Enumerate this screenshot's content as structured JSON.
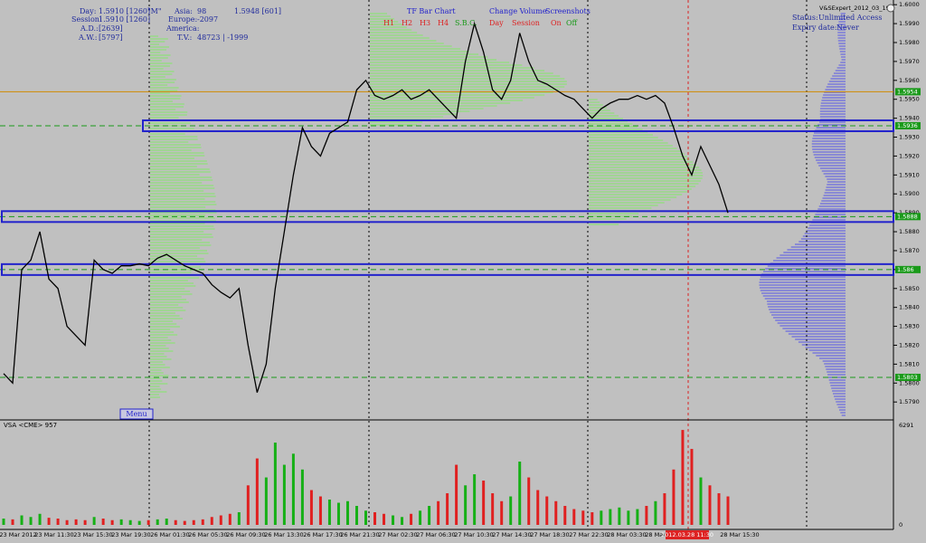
{
  "info_panel": {
    "day": {
      "label": "Day:",
      "value": "1.5910 [1260]",
      "mode": "\"M\""
    },
    "session": {
      "label": "Session:",
      "value": "1.5910 [1260]"
    },
    "ad": {
      "label": "A.D.:",
      "value": "[2639]"
    },
    "aw": {
      "label": "A.W.:",
      "value": "[5797]"
    },
    "asia": {
      "label": "Asia:",
      "value": "98",
      "extra": "1.5948 [601]"
    },
    "europe": {
      "label": "Europe:",
      "value": "-2097"
    },
    "america": {
      "label": "America:"
    },
    "tv": {
      "label": "T.V.:",
      "value": "48723 | -1999"
    }
  },
  "menu_bar": {
    "tf_bar_chart": "TF Bar Chart",
    "timeframes": [
      "H1",
      "H2",
      "H3",
      "H4"
    ],
    "sbc": "S.B.C.",
    "change_volume": "Change Volume",
    "day": "Day",
    "session": "Session",
    "screenshots": "Screenshots",
    "on": "On",
    "off": "Off"
  },
  "expert_panel": {
    "name": "V&SExpert_2012_03_19",
    "status_label": "Status:",
    "status": "Unlimited Access",
    "expiry_label": "Expiry date:",
    "expiry": "Never"
  },
  "menu_button": "Menu",
  "price_panel": {
    "ylim": [
      1.5781,
      1.6002
    ],
    "yticks": [
      {
        "value": 1.6,
        "label": "1.6000"
      },
      {
        "value": 1.599,
        "label": "1.5990"
      },
      {
        "value": 1.598,
        "label": "1.5980"
      },
      {
        "value": 1.597,
        "label": "1.5970"
      },
      {
        "value": 1.596,
        "label": "1.5960"
      },
      {
        "value": 1.595,
        "label": "1.5950"
      },
      {
        "value": 1.594,
        "label": "1.5940"
      },
      {
        "value": 1.593,
        "label": "1.5930"
      },
      {
        "value": 1.592,
        "label": "1.5920"
      },
      {
        "value": 1.591,
        "label": "1.5910"
      },
      {
        "value": 1.59,
        "label": "1.5900"
      },
      {
        "value": 1.589,
        "label": "1.5890"
      },
      {
        "value": 1.588,
        "label": "1.5880"
      },
      {
        "value": 1.587,
        "label": "1.5870"
      },
      {
        "value": 1.586,
        "label": "1.5860"
      },
      {
        "value": 1.585,
        "label": "1.5850"
      },
      {
        "value": 1.584,
        "label": "1.5840"
      },
      {
        "value": 1.583,
        "label": "1.5830"
      },
      {
        "value": 1.582,
        "label": "1.5820"
      },
      {
        "value": 1.581,
        "label": "1.5810"
      },
      {
        "value": 1.58,
        "label": "1.5800"
      },
      {
        "value": 1.579,
        "label": "1.5790"
      }
    ],
    "levels": [
      1.5954,
      1.5936,
      1.5888,
      1.586,
      1.5803
    ],
    "close": [
      1.5805,
      1.58,
      1.586,
      1.5865,
      1.588,
      1.5855,
      1.585,
      1.583,
      1.5825,
      1.582,
      1.5865,
      1.586,
      1.5858,
      1.5862,
      1.5862,
      1.5863,
      1.5862,
      1.5866,
      1.5868,
      1.5865,
      1.5862,
      1.586,
      1.5858,
      1.5852,
      1.5848,
      1.5845,
      1.585,
      1.582,
      1.5795,
      1.581,
      1.585,
      1.588,
      1.591,
      1.5935,
      1.5925,
      1.592,
      1.5932,
      1.5935,
      1.5938,
      1.5955,
      1.596,
      1.5952,
      1.595,
      1.5952,
      1.5955,
      1.595,
      1.5952,
      1.5955,
      1.595,
      1.5945,
      1.594,
      1.597,
      1.599,
      1.5975,
      1.5955,
      1.595,
      1.596,
      1.5985,
      1.597,
      1.596,
      1.5958,
      1.5955,
      1.5952,
      1.595,
      1.5945,
      1.594,
      1.5945,
      1.5948,
      1.595,
      1.595,
      1.5952,
      1.595,
      1.5952,
      1.5948,
      1.5935,
      1.592,
      1.591,
      1.5925,
      1.5915,
      1.5905,
      1.589
    ]
  },
  "volume_panel": {
    "title": "VSA <CME> 957",
    "ylim": [
      0,
      6291
    ],
    "yticks": [
      0,
      6291
    ],
    "values": [
      400,
      350,
      600,
      500,
      700,
      450,
      400,
      300,
      350,
      300,
      500,
      400,
      300,
      350,
      300,
      250,
      300,
      350,
      400,
      300,
      250,
      300,
      350,
      500,
      600,
      700,
      800,
      2500,
      4200,
      3000,
      5200,
      3800,
      4500,
      3500,
      2200,
      1800,
      1600,
      1400,
      1500,
      1200,
      900,
      800,
      700,
      600,
      500,
      700,
      900,
      1200,
      1500,
      2000,
      3800,
      2500,
      3200,
      2800,
      2000,
      1500,
      1800,
      4000,
      3000,
      2200,
      1800,
      1500,
      1200,
      1000,
      900,
      800,
      900,
      1000,
      1100,
      900,
      1000,
      1200,
      1500,
      2000,
      3500,
      6000,
      4800,
      3000,
      2500,
      2000,
      1800
    ]
  },
  "time_axis": [
    "23 Mar 2012",
    "23 Mar 11:30",
    "23 Mar 15:30",
    "23 Mar 19:30",
    "26 Mar 01:30",
    "26 Mar 05:30",
    "26 Mar 09:30",
    "26 Mar 13:30",
    "26 Mar 17:30",
    "26 Mar 21:30",
    "27 Mar 02:30",
    "27 Mar 06:30",
    "27 Mar 10:30",
    "27 Mar 14:30",
    "27 Mar 18:30",
    "27 Mar 22:30",
    "28 Mar 03:30",
    "28 Mar 07:30",
    "2012.03.28 11:30",
    "28 Mar 15:30"
  ]
}
